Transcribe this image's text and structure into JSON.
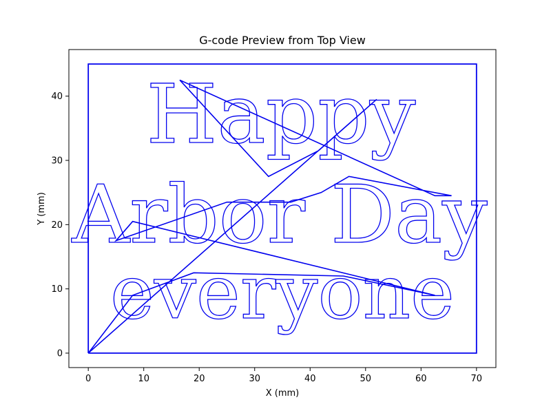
{
  "chart_data": {
    "type": "line",
    "title": "G-code Preview from Top View",
    "xlabel": "X (mm)",
    "ylabel": "Y (mm)",
    "xlim": [
      -3.5,
      73.5
    ],
    "ylim": [
      -2.25,
      47.25
    ],
    "x_ticks": [
      0,
      10,
      20,
      30,
      40,
      50,
      60,
      70
    ],
    "y_ticks": [
      0,
      10,
      20,
      30,
      40
    ],
    "x_tick_labels": [
      "0",
      "10",
      "20",
      "30",
      "40",
      "50",
      "60",
      "70"
    ],
    "y_tick_labels": [
      "0",
      "10",
      "20",
      "30",
      "40"
    ],
    "grid": false,
    "color": "#0000ee",
    "text_lines": [
      "Happy",
      "Arbor Day",
      "everyone"
    ],
    "border": {
      "x": [
        0,
        70,
        70,
        0,
        0
      ],
      "y": [
        0,
        0,
        45,
        45,
        0
      ]
    },
    "travel_moves": {
      "x": [
        0,
        52,
        41.5,
        32.5,
        16.5,
        62.5,
        65.5,
        47,
        42,
        36.5,
        25,
        5,
        8,
        62.5,
        46,
        19,
        8,
        0
      ],
      "y": [
        0,
        39.5,
        31.5,
        27.5,
        42.5,
        24.5,
        24.5,
        27.5,
        25,
        23.5,
        23.5,
        17.5,
        20.5,
        9,
        12,
        12.5,
        9,
        0
      ]
    }
  }
}
